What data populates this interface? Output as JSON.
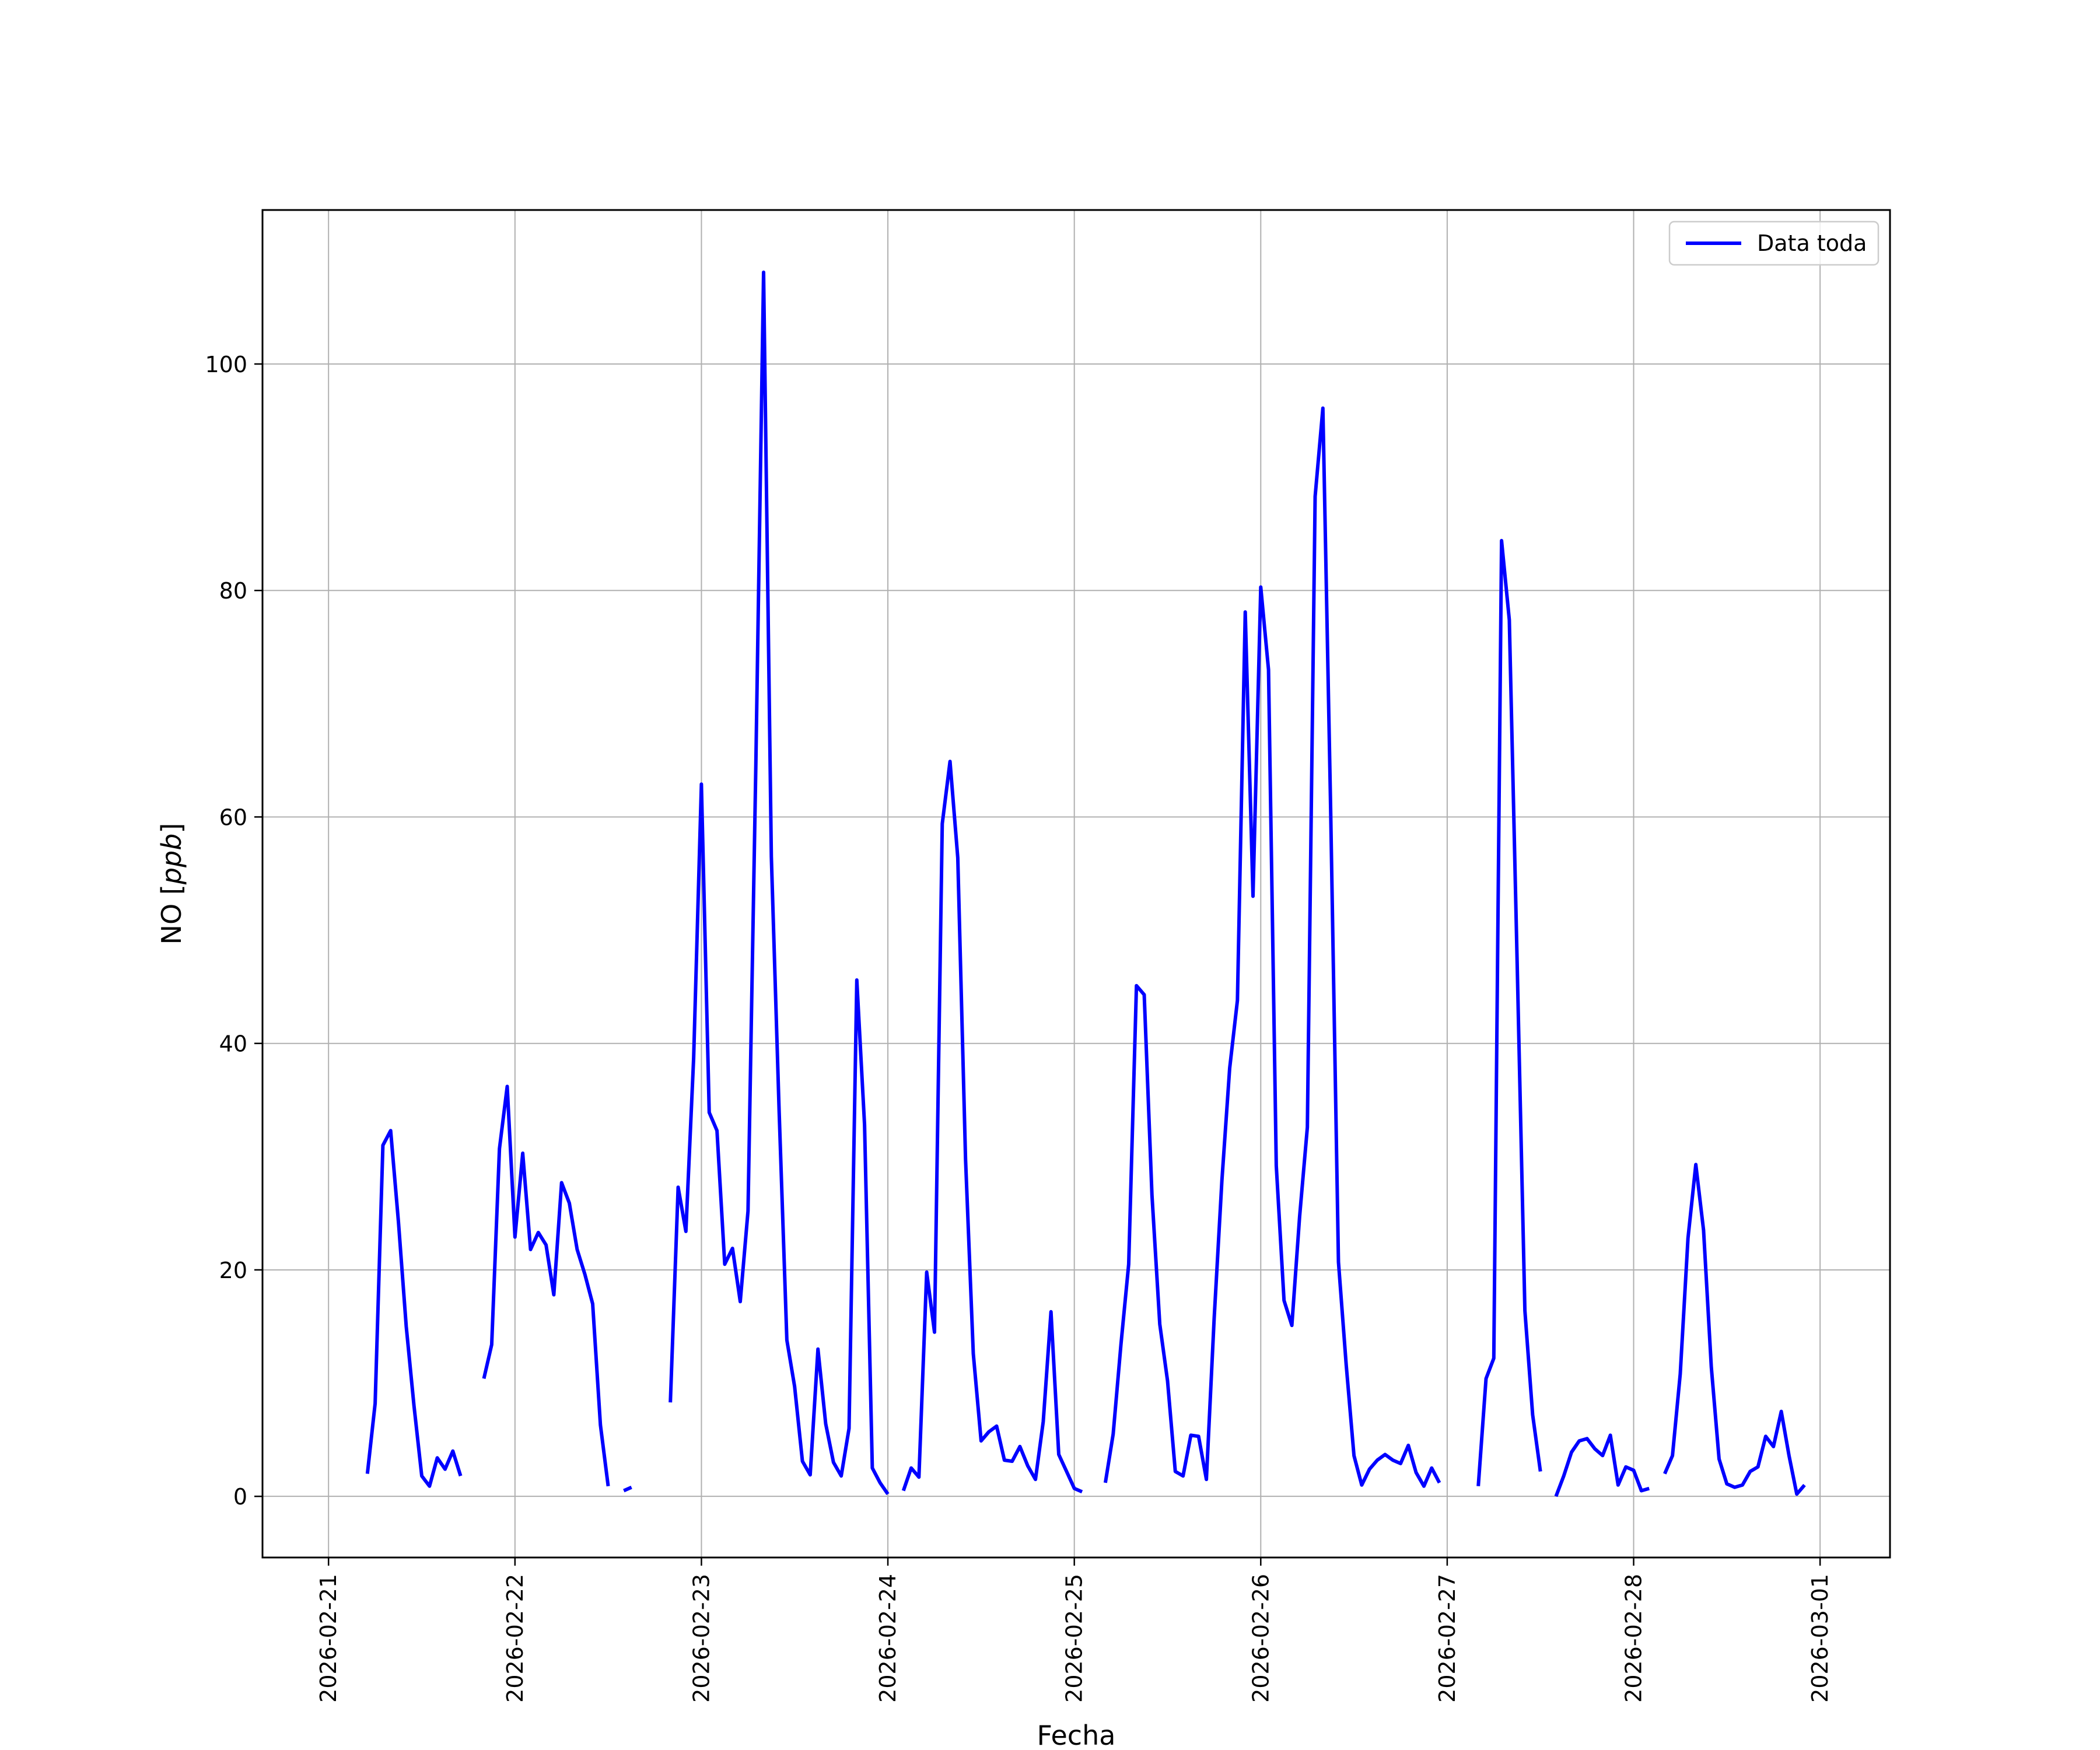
{
  "chart_data": {
    "type": "line",
    "title": "",
    "xlabel": "Fecha",
    "ylabel": "NO [ppb]",
    "ylabel_parts": {
      "prefix": "NO [",
      "unit": "ppb",
      "suffix": "]"
    },
    "x_ticks": [
      "2026-02-21",
      "2026-02-22",
      "2026-02-23",
      "2026-02-24",
      "2026-02-25",
      "2026-02-26",
      "2026-02-27",
      "2026-02-28",
      "2026-03-01"
    ],
    "y_ticks": [
      0,
      20,
      40,
      60,
      80,
      100
    ],
    "xlim": [
      "2026-02-20 15:30",
      "2026-03-01 09:00"
    ],
    "ylim": [
      -5.4,
      113.6
    ],
    "grid": true,
    "legend_position": "top-right",
    "series": [
      {
        "name": "Data toda",
        "color": "#0000ff",
        "points": [
          [
            "2026-02-21 05:00",
            2.0
          ],
          [
            "2026-02-21 06:00",
            8.2
          ],
          [
            "2026-02-21 07:00",
            31.0
          ],
          [
            "2026-02-21 08:00",
            32.3
          ],
          [
            "2026-02-21 09:00",
            24.2
          ],
          [
            "2026-02-21 10:00",
            15.0
          ],
          [
            "2026-02-21 11:00",
            8.0
          ],
          [
            "2026-02-21 12:00",
            1.8
          ],
          [
            "2026-02-21 13:00",
            0.9
          ],
          [
            "2026-02-21 14:00",
            3.4
          ],
          [
            "2026-02-21 15:00",
            2.4
          ],
          [
            "2026-02-21 16:00",
            4.0
          ],
          [
            "2026-02-21 17:00",
            1.8
          ],
          null,
          [
            "2026-02-21 20:00",
            10.4
          ],
          [
            "2026-02-21 21:00",
            13.4
          ],
          [
            "2026-02-21 22:00",
            30.7
          ],
          [
            "2026-02-21 23:00",
            36.2
          ],
          [
            "2026-02-22 00:00",
            22.9
          ],
          [
            "2026-02-22 01:00",
            30.3
          ],
          [
            "2026-02-22 02:00",
            21.8
          ],
          [
            "2026-02-22 03:00",
            23.3
          ],
          [
            "2026-02-22 04:00",
            22.2
          ],
          [
            "2026-02-22 05:00",
            17.8
          ],
          [
            "2026-02-22 06:00",
            27.7
          ],
          [
            "2026-02-22 07:00",
            25.9
          ],
          [
            "2026-02-22 08:00",
            21.8
          ],
          [
            "2026-02-22 09:00",
            19.6
          ],
          [
            "2026-02-22 10:00",
            17.0
          ],
          [
            "2026-02-22 11:00",
            6.3
          ],
          [
            "2026-02-22 12:00",
            0.9
          ],
          null,
          [
            "2026-02-22 14:00",
            0.5
          ],
          [
            "2026-02-22 15:00",
            0.8
          ],
          null,
          [
            "2026-02-22 20:00",
            8.3
          ],
          [
            "2026-02-22 21:00",
            27.3
          ],
          [
            "2026-02-22 22:00",
            23.4
          ],
          [
            "2026-02-22 23:00",
            38.7
          ],
          [
            "2026-02-23 00:00",
            62.9
          ],
          [
            "2026-02-23 01:00",
            33.9
          ],
          [
            "2026-02-23 02:00",
            32.3
          ],
          [
            "2026-02-23 03:00",
            20.5
          ],
          [
            "2026-02-23 04:00",
            21.9
          ],
          [
            "2026-02-23 05:00",
            17.2
          ],
          [
            "2026-02-23 06:00",
            25.2
          ],
          [
            "2026-02-23 07:00",
            64.5
          ],
          [
            "2026-02-23 08:00",
            108.1
          ],
          [
            "2026-02-23 09:00",
            56.5
          ],
          [
            "2026-02-23 10:00",
            34.1
          ],
          [
            "2026-02-23 11:00",
            13.8
          ],
          [
            "2026-02-23 12:00",
            9.7
          ],
          [
            "2026-02-23 13:00",
            3.1
          ],
          [
            "2026-02-23 14:00",
            1.9
          ],
          [
            "2026-02-23 15:00",
            13.0
          ],
          [
            "2026-02-23 16:00",
            6.4
          ],
          [
            "2026-02-23 17:00",
            3.0
          ],
          [
            "2026-02-23 18:00",
            1.8
          ],
          [
            "2026-02-23 19:00",
            6.0
          ],
          [
            "2026-02-23 20:00",
            45.6
          ],
          [
            "2026-02-23 21:00",
            32.8
          ],
          [
            "2026-02-23 22:00",
            2.5
          ],
          [
            "2026-02-23 23:00",
            1.2
          ],
          [
            "2026-02-24 00:00",
            0.2
          ],
          null,
          [
            "2026-02-24 02:00",
            0.5
          ],
          [
            "2026-02-24 03:00",
            2.5
          ],
          [
            "2026-02-24 04:00",
            1.7
          ],
          [
            "2026-02-24 05:00",
            19.8
          ],
          [
            "2026-02-24 06:00",
            14.5
          ],
          [
            "2026-02-24 07:00",
            59.4
          ],
          [
            "2026-02-24 08:00",
            64.9
          ],
          [
            "2026-02-24 09:00",
            56.4
          ],
          [
            "2026-02-24 10:00",
            29.8
          ],
          [
            "2026-02-24 11:00",
            12.6
          ],
          [
            "2026-02-24 12:00",
            4.9
          ],
          [
            "2026-02-24 13:00",
            5.7
          ],
          [
            "2026-02-24 14:00",
            6.2
          ],
          [
            "2026-02-24 15:00",
            3.2
          ],
          [
            "2026-02-24 16:00",
            3.1
          ],
          [
            "2026-02-24 17:00",
            4.4
          ],
          [
            "2026-02-24 18:00",
            2.7
          ],
          [
            "2026-02-24 19:00",
            1.5
          ],
          [
            "2026-02-24 20:00",
            6.6
          ],
          [
            "2026-02-24 21:00",
            16.3
          ],
          [
            "2026-02-24 22:00",
            3.7
          ],
          [
            "2026-02-24 23:00",
            2.2
          ],
          [
            "2026-02-25 00:00",
            0.7
          ],
          [
            "2026-02-25 01:00",
            0.4
          ],
          null,
          [
            "2026-02-25 04:00",
            1.2
          ],
          [
            "2026-02-25 05:00",
            5.5
          ],
          [
            "2026-02-25 06:00",
            13.4
          ],
          [
            "2026-02-25 07:00",
            20.5
          ],
          [
            "2026-02-25 08:00",
            45.1
          ],
          [
            "2026-02-25 09:00",
            44.3
          ],
          [
            "2026-02-25 10:00",
            26.6
          ],
          [
            "2026-02-25 11:00",
            15.2
          ],
          [
            "2026-02-25 12:00",
            10.2
          ],
          [
            "2026-02-25 13:00",
            2.2
          ],
          [
            "2026-02-25 14:00",
            1.8
          ],
          [
            "2026-02-25 15:00",
            5.4
          ],
          [
            "2026-02-25 16:00",
            5.3
          ],
          [
            "2026-02-25 17:00",
            1.5
          ],
          [
            "2026-02-25 18:00",
            15.7
          ],
          [
            "2026-02-25 19:00",
            27.9
          ],
          [
            "2026-02-25 20:00",
            37.8
          ],
          [
            "2026-02-25 21:00",
            43.8
          ],
          [
            "2026-02-25 22:00",
            78.1
          ],
          [
            "2026-02-25 23:00",
            53.0
          ],
          [
            "2026-02-26 00:00",
            80.3
          ],
          [
            "2026-02-26 01:00",
            73.0
          ],
          [
            "2026-02-26 02:00",
            29.2
          ],
          [
            "2026-02-26 03:00",
            17.3
          ],
          [
            "2026-02-26 04:00",
            15.1
          ],
          [
            "2026-02-26 05:00",
            24.7
          ],
          [
            "2026-02-26 06:00",
            32.6
          ],
          [
            "2026-02-26 07:00",
            88.3
          ],
          [
            "2026-02-26 08:00",
            96.1
          ],
          [
            "2026-02-26 09:00",
            60.7
          ],
          [
            "2026-02-26 10:00",
            20.7
          ],
          [
            "2026-02-26 11:00",
            11.6
          ],
          [
            "2026-02-26 12:00",
            3.6
          ],
          [
            "2026-02-26 13:00",
            1.0
          ],
          [
            "2026-02-26 14:00",
            2.4
          ],
          [
            "2026-02-26 15:00",
            3.2
          ],
          [
            "2026-02-26 16:00",
            3.7
          ],
          [
            "2026-02-26 17:00",
            3.2
          ],
          [
            "2026-02-26 18:00",
            2.9
          ],
          [
            "2026-02-26 19:00",
            4.5
          ],
          [
            "2026-02-26 20:00",
            2.1
          ],
          [
            "2026-02-26 21:00",
            0.9
          ],
          [
            "2026-02-26 22:00",
            2.5
          ],
          [
            "2026-02-26 23:00",
            1.2
          ],
          null,
          [
            "2026-02-27 04:00",
            0.9
          ],
          [
            "2026-02-27 05:00",
            10.4
          ],
          [
            "2026-02-27 06:00",
            12.2
          ],
          [
            "2026-02-27 07:00",
            84.4
          ],
          [
            "2026-02-27 08:00",
            77.4
          ],
          [
            "2026-02-27 09:00",
            47.2
          ],
          [
            "2026-02-27 10:00",
            16.4
          ],
          [
            "2026-02-27 11:00",
            7.2
          ],
          [
            "2026-02-27 12:00",
            2.2
          ],
          null,
          [
            "2026-02-27 14:00",
            0.0
          ],
          [
            "2026-02-27 15:00",
            1.8
          ],
          [
            "2026-02-27 16:00",
            3.9
          ],
          [
            "2026-02-27 17:00",
            4.9
          ],
          [
            "2026-02-27 18:00",
            5.1
          ],
          [
            "2026-02-27 19:00",
            4.2
          ],
          [
            "2026-02-27 20:00",
            3.6
          ],
          [
            "2026-02-27 21:00",
            5.4
          ],
          [
            "2026-02-27 22:00",
            1.0
          ],
          [
            "2026-02-27 23:00",
            2.6
          ],
          [
            "2026-02-28 00:00",
            2.3
          ],
          [
            "2026-02-28 01:00",
            0.5
          ],
          [
            "2026-02-28 02:00",
            0.7
          ],
          null,
          [
            "2026-02-28 04:00",
            2.0
          ],
          [
            "2026-02-28 05:00",
            3.6
          ],
          [
            "2026-02-28 06:00",
            10.8
          ],
          [
            "2026-02-28 07:00",
            22.8
          ],
          [
            "2026-02-28 08:00",
            29.3
          ],
          [
            "2026-02-28 09:00",
            23.5
          ],
          [
            "2026-02-28 10:00",
            11.4
          ],
          [
            "2026-02-28 11:00",
            3.3
          ],
          [
            "2026-02-28 12:00",
            1.1
          ],
          [
            "2026-02-28 13:00",
            0.8
          ],
          [
            "2026-02-28 14:00",
            1.0
          ],
          [
            "2026-02-28 15:00",
            2.2
          ],
          [
            "2026-02-28 16:00",
            2.6
          ],
          [
            "2026-02-28 17:00",
            5.3
          ],
          [
            "2026-02-28 18:00",
            4.4
          ],
          [
            "2026-02-28 19:00",
            7.5
          ],
          [
            "2026-02-28 20:00",
            3.6
          ],
          [
            "2026-02-28 21:00",
            0.2
          ],
          [
            "2026-02-28 22:00",
            1.0
          ]
        ]
      }
    ]
  }
}
